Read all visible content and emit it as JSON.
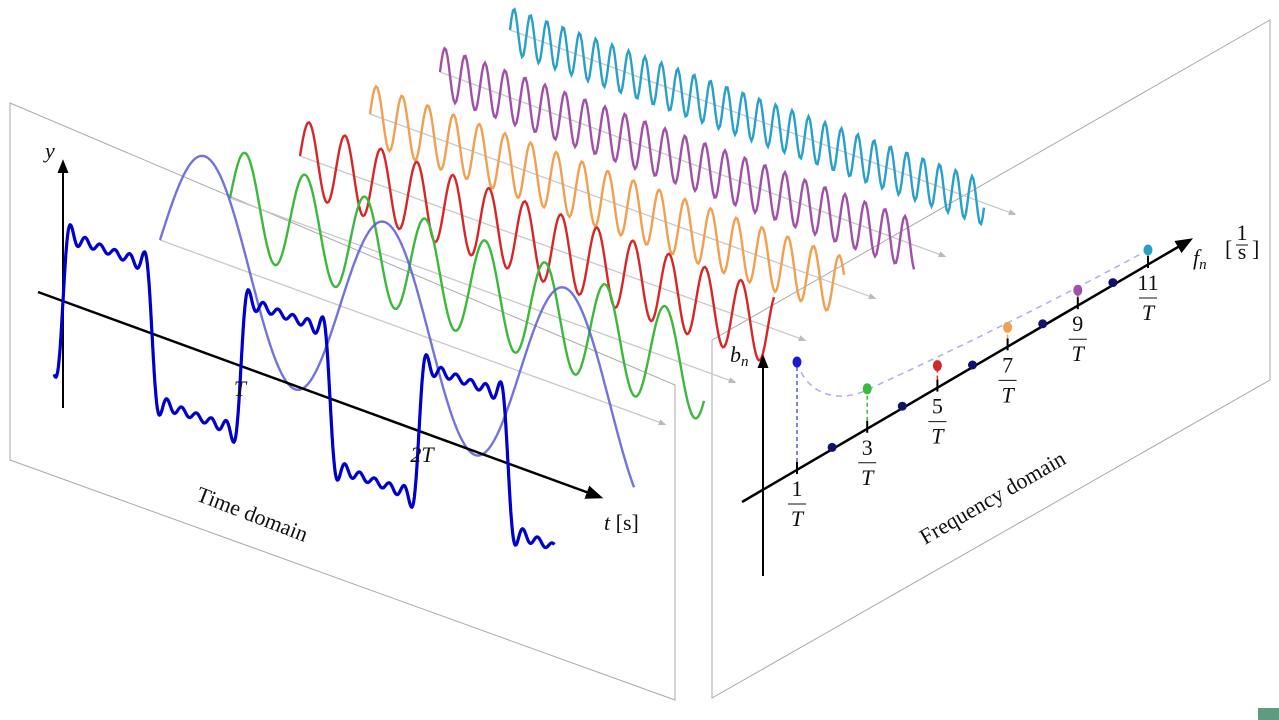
{
  "time_panel": {
    "y_axis_label": "y",
    "x_axis_label": {
      "symbol": "t",
      "unit": "[s]"
    },
    "ticks": [
      "T",
      "2T"
    ],
    "title": "Time domain"
  },
  "frequency_panel": {
    "y_axis_label": {
      "symbol": "b",
      "subscript": "n"
    },
    "x_axis_label": {
      "symbol": "f",
      "subscript": "n",
      "open": "[",
      "unit_numerator": "1",
      "unit_denominator": "s",
      "close": "]"
    },
    "ticks": [
      {
        "numerator": "1",
        "denominator": "T"
      },
      {
        "numerator": "3",
        "denominator": "T"
      },
      {
        "numerator": "5",
        "denominator": "T"
      },
      {
        "numerator": "7",
        "denominator": "T"
      },
      {
        "numerator": "9",
        "denominator": "T"
      },
      {
        "numerator": "11",
        "denominator": "T"
      }
    ],
    "title": "Frequency domain"
  }
}
